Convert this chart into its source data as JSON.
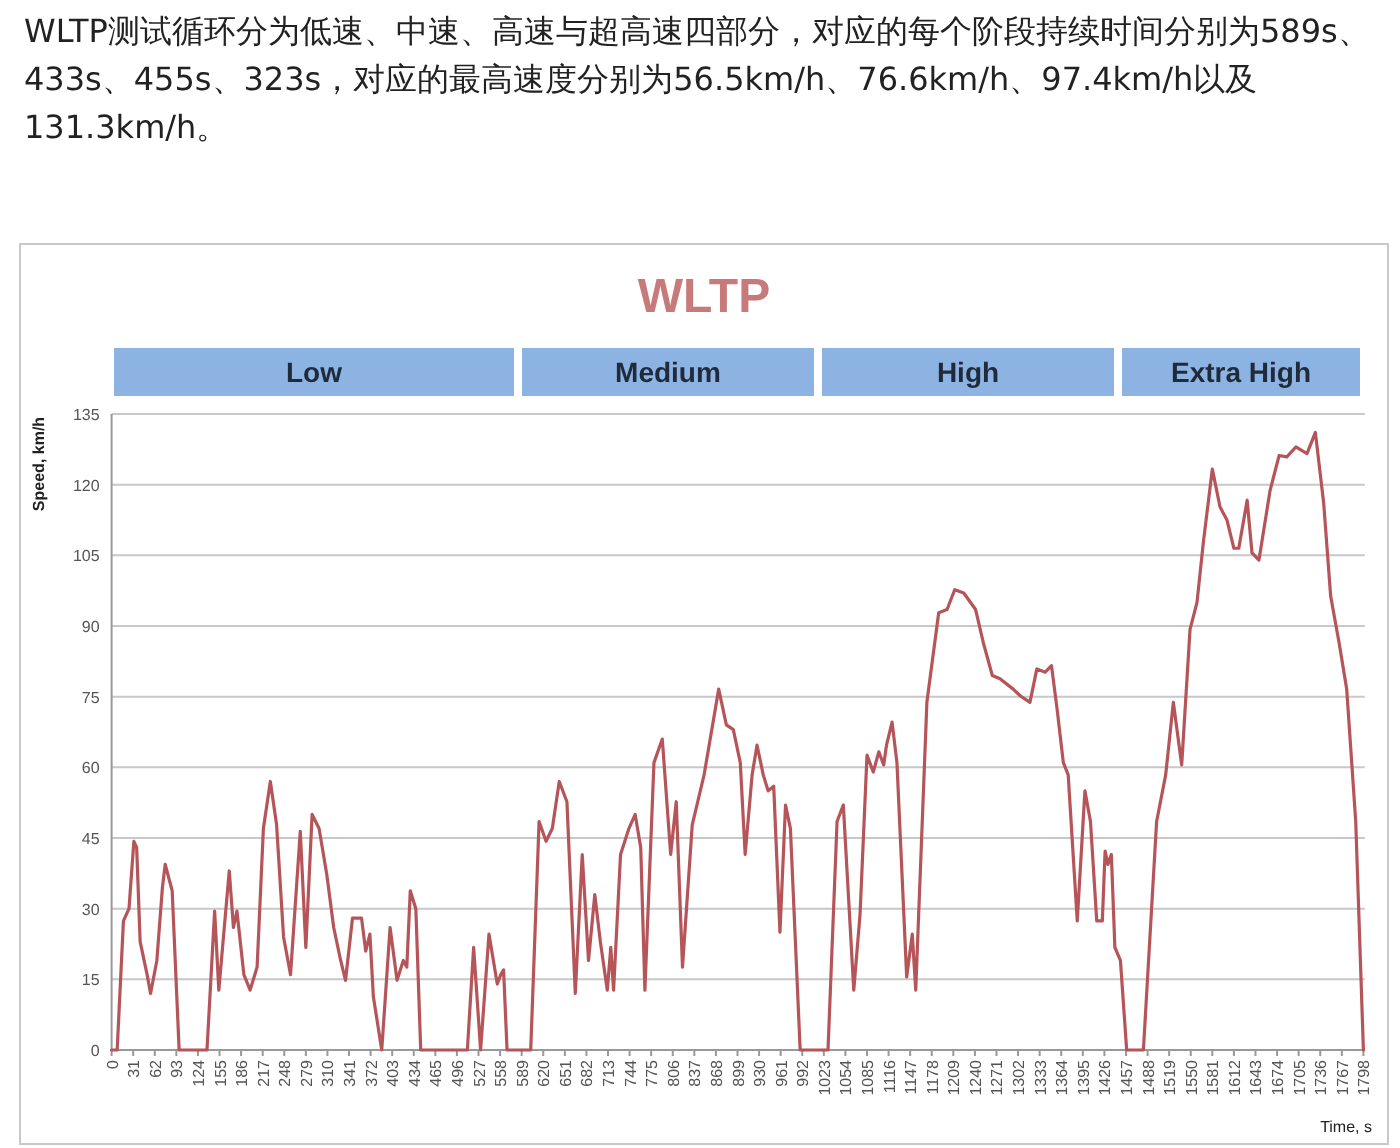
{
  "chart_data": {
    "type": "line",
    "title": "WLTP",
    "xlabel": "Time, s",
    "ylabel": "Speed, km/h",
    "annotations": [
      "WLTP测试循环分为低速、中速、高速与超高速四部分，对应的每个阶段持续时间分别为589s、433s、455s、323s，对应的最高速度分别为56.5km/h、76.6km/h、97.4km/h以及131.3km/h。",
      "Low",
      "Medium",
      "High",
      "Extra High"
    ],
    "xlim": [
      0,
      1800
    ],
    "ylim": [
      0,
      135
    ],
    "xticks": [
      0,
      31,
      62,
      93,
      124,
      155,
      186,
      217,
      248,
      279,
      310,
      341,
      372,
      403,
      434,
      465,
      496,
      527,
      558,
      589,
      620,
      651,
      682,
      713,
      744,
      775,
      806,
      837,
      868,
      899,
      930,
      961,
      992,
      1023,
      1054,
      1085,
      1116,
      1147,
      1178,
      1209,
      1240,
      1271,
      1302,
      1333,
      1364,
      1395,
      1426,
      1457,
      1488,
      1519,
      1550,
      1581,
      1612,
      1643,
      1674,
      1705,
      1736,
      1767,
      1798
    ],
    "yticks": [
      0,
      15,
      30,
      45,
      60,
      75,
      90,
      105,
      120,
      135
    ],
    "grid": "y",
    "line_style": "solid",
    "marker": "none",
    "series": [
      {
        "color": "#b5555a",
        "x": [
          0,
          8,
          17,
          25,
          32,
          36,
          41,
          51,
          56,
          65,
          73,
          77,
          87,
          97,
          137,
          148,
          154,
          161,
          169,
          175,
          180,
          190,
          199,
          209,
          218,
          228,
          237,
          247,
          257,
          271,
          279,
          288,
          298,
          309,
          319,
          329,
          336,
          346,
          359,
          365,
          371,
          376,
          388,
          400,
          410,
          419,
          424,
          429,
          437,
          444,
          511,
          520,
          530,
          542,
          554,
          559,
          563,
          568,
          602,
          614,
          624,
          633,
          643,
          654,
          666,
          676,
          685,
          694,
          702,
          712,
          717,
          721,
          731,
          743,
          752,
          760,
          766,
          779,
          791,
          803,
          811,
          820,
          834,
          851,
          872,
          883,
          893,
          903,
          910,
          920,
          927,
          936,
          943,
          951,
          960,
          968,
          975,
          989,
          1029,
          1042,
          1051,
          1066,
          1075,
          1085,
          1094,
          1102,
          1109,
          1113,
          1121,
          1128,
          1142,
          1150,
          1155,
          1171,
          1188,
          1200,
          1211,
          1224,
          1241,
          1252,
          1265,
          1276,
          1295,
          1305,
          1319,
          1329,
          1341,
          1350,
          1358,
          1367,
          1374,
          1387,
          1398,
          1406,
          1415,
          1423,
          1427,
          1431,
          1436,
          1441,
          1449,
          1458,
          1482,
          1501,
          1514,
          1525,
          1537,
          1549,
          1559,
          1568,
          1581,
          1592,
          1602,
          1612,
          1619,
          1631,
          1638,
          1648,
          1664,
          1677,
          1688,
          1701,
          1717,
          1729,
          1741,
          1751,
          1763,
          1774,
          1787,
          1798
        ],
        "values": [
          0,
          0,
          27.4,
          30,
          44.3,
          43,
          23,
          16,
          12,
          19,
          34.5,
          39.4,
          33.8,
          0,
          0,
          29.5,
          12.7,
          24.6,
          38,
          26,
          29.5,
          16,
          12.7,
          17.6,
          47,
          57,
          47.8,
          24,
          16,
          46.4,
          21.8,
          50,
          47,
          37.3,
          26,
          19,
          14.8,
          28,
          28,
          21,
          24.6,
          11.3,
          0,
          26,
          14.8,
          19,
          17.6,
          33.8,
          30,
          0,
          0,
          21.8,
          0,
          24.6,
          14,
          16,
          17,
          0,
          0,
          48.5,
          44.3,
          47,
          57,
          52.7,
          12,
          41.5,
          19,
          33,
          23,
          12.7,
          21.8,
          12.7,
          41.5,
          47,
          50,
          43,
          12.7,
          61,
          66,
          41.5,
          52.7,
          17.6,
          47.8,
          58.4,
          76.6,
          69,
          68,
          61,
          41.5,
          58.4,
          64.7,
          58.4,
          55,
          56,
          25,
          52,
          47,
          0,
          0,
          48.5,
          52,
          12.7,
          28.8,
          62.6,
          59,
          63.3,
          60.5,
          64.7,
          69.6,
          61,
          15.5,
          24.6,
          12.7,
          73.8,
          92.8,
          93.5,
          97.7,
          97,
          93.5,
          86.5,
          79.5,
          78.8,
          76.6,
          75.2,
          73.8,
          80.9,
          80.2,
          81.6,
          72.4,
          61,
          58.4,
          27.4,
          55,
          48.5,
          27.4,
          27.4,
          42.2,
          39.4,
          41.5,
          21.8,
          19,
          0,
          0,
          48.5,
          58.4,
          73.8,
          60.5,
          89.3,
          95,
          107.6,
          123.3,
          115.3,
          112.5,
          106.5,
          106.5,
          116.7,
          105.5,
          104,
          118.8,
          126.2,
          125.9,
          128,
          126.6,
          131.1,
          116,
          96.3,
          86.5,
          76.6,
          48.5,
          0
        ]
      }
    ]
  }
}
